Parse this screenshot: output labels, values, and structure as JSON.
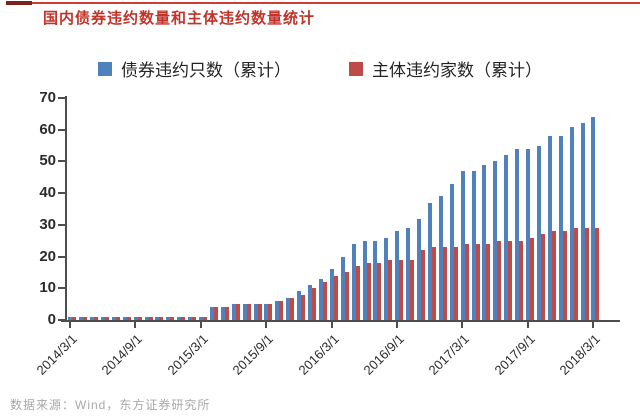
{
  "page": {
    "title": "国内债券违约数量和主体违约数量统计",
    "source": "数据来源：Wind，东方证券研究所"
  },
  "chart_data": {
    "type": "bar",
    "title": "国内债券违约数量和主体违约数量统计",
    "xlabel": "",
    "ylabel": "",
    "ylim": [
      0,
      70
    ],
    "y_ticks": [
      0,
      10,
      20,
      30,
      40,
      50,
      60,
      70
    ],
    "grid": false,
    "legend_position": "top",
    "x_tick_every": 6,
    "x_tick_labels": [
      "2014/3/1",
      "2014/9/1",
      "2015/3/1",
      "2015/9/1",
      "2016/3/1",
      "2016/9/1",
      "2017/3/1",
      "2017/9/1",
      "2018/3/1"
    ],
    "categories": [
      "2014/3/1",
      "2014/4/1",
      "2014/5/1",
      "2014/6/1",
      "2014/7/1",
      "2014/8/1",
      "2014/9/1",
      "2014/10/1",
      "2014/11/1",
      "2014/12/1",
      "2015/1/1",
      "2015/2/1",
      "2015/3/1",
      "2015/4/1",
      "2015/5/1",
      "2015/6/1",
      "2015/7/1",
      "2015/8/1",
      "2015/9/1",
      "2015/10/1",
      "2015/11/1",
      "2015/12/1",
      "2016/1/1",
      "2016/2/1",
      "2016/3/1",
      "2016/4/1",
      "2016/5/1",
      "2016/6/1",
      "2016/7/1",
      "2016/8/1",
      "2016/9/1",
      "2016/10/1",
      "2016/11/1",
      "2016/12/1",
      "2017/1/1",
      "2017/2/1",
      "2017/3/1",
      "2017/4/1",
      "2017/5/1",
      "2017/6/1",
      "2017/7/1",
      "2017/8/1",
      "2017/9/1",
      "2017/10/1",
      "2017/11/1",
      "2017/12/1",
      "2018/1/1",
      "2018/2/1",
      "2018/3/1"
    ],
    "series": [
      {
        "name": "债券违约只数（累计）",
        "color": "#4f81bd",
        "values": [
          1,
          1,
          1,
          1,
          1,
          1,
          1,
          1,
          1,
          1,
          1,
          1,
          1,
          4,
          4,
          5,
          5,
          5,
          5,
          6,
          7,
          9,
          11,
          13,
          16,
          20,
          24,
          25,
          25,
          26,
          28,
          29,
          32,
          37,
          39,
          43,
          47,
          47,
          49,
          50,
          52,
          54,
          54,
          55,
          58,
          58,
          61,
          62,
          64
        ]
      },
      {
        "name": "主体违约家数（累计）",
        "color": "#bf4b47",
        "values": [
          1,
          1,
          1,
          1,
          1,
          1,
          1,
          1,
          1,
          1,
          1,
          1,
          1,
          4,
          4,
          5,
          5,
          5,
          5,
          6,
          7,
          8,
          10,
          12,
          14,
          15,
          17,
          18,
          18,
          19,
          19,
          19,
          22,
          23,
          23,
          23,
          24,
          24,
          24,
          25,
          25,
          25,
          26,
          27,
          28,
          28,
          29,
          29,
          29
        ]
      }
    ]
  }
}
